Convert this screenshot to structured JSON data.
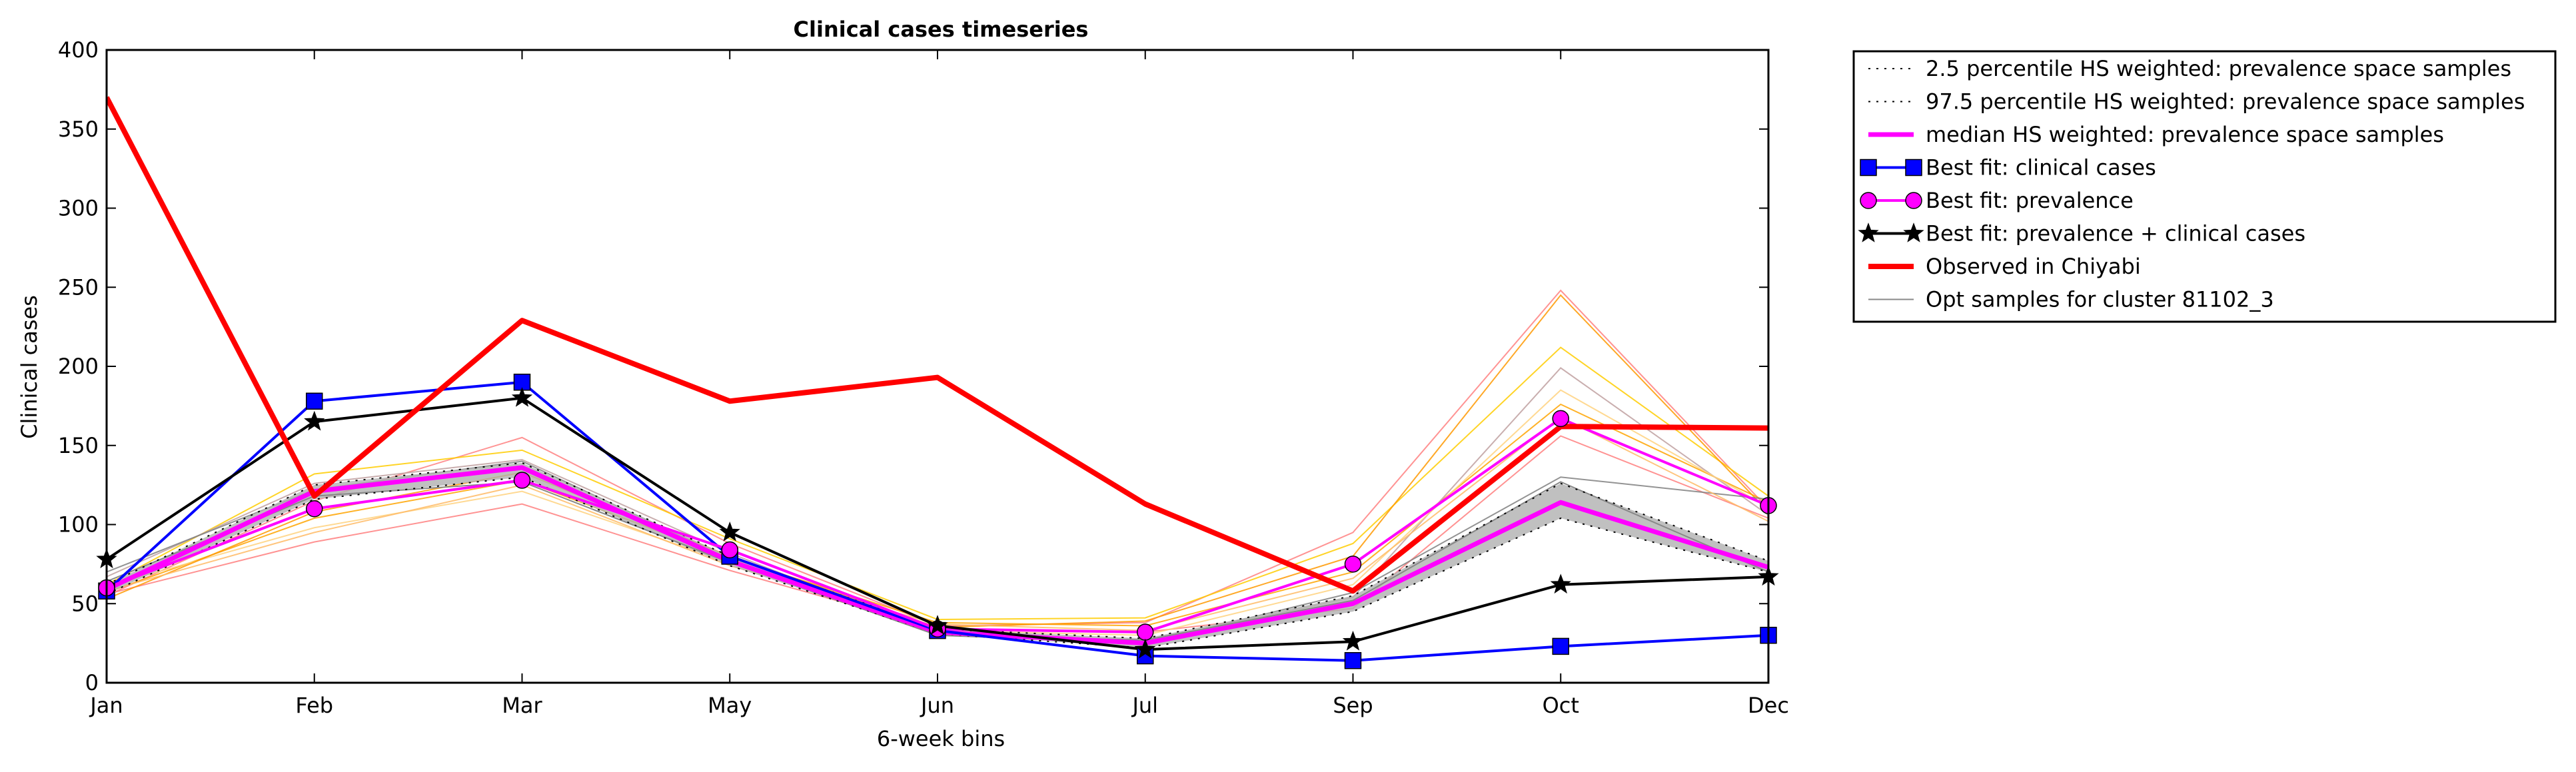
{
  "chart_data": {
    "type": "line",
    "title": "Clinical cases timeseries",
    "xlabel": "6-week bins",
    "ylabel": "Clinical cases",
    "categories": [
      "Jan",
      "Feb",
      "Mar",
      "May",
      "Jun",
      "Jul",
      "Sep",
      "Oct",
      "Dec"
    ],
    "ylim": [
      0,
      400
    ],
    "yticks": [
      0,
      50,
      100,
      150,
      200,
      250,
      300,
      350,
      400
    ],
    "grid": false,
    "legend_placement": "outside top-right",
    "band": {
      "lower": [
        56,
        116,
        130,
        74,
        31,
        22,
        45,
        104,
        70
      ],
      "upper": [
        62,
        125,
        139,
        80,
        34,
        28,
        55,
        126,
        77
      ],
      "color": "#b0b0b0"
    },
    "series": [
      {
        "name": "2.5 percentile HS weighted: prevalence space samples",
        "style": "dotted",
        "color": "#000000",
        "values": [
          56,
          116,
          130,
          74,
          31,
          22,
          45,
          104,
          70
        ]
      },
      {
        "name": "97.5 percentile HS weighted: prevalence space samples",
        "style": "dotted",
        "color": "#000000",
        "values": [
          62,
          125,
          139,
          80,
          34,
          28,
          55,
          126,
          77
        ]
      },
      {
        "name": "median HS weighted: prevalence space samples",
        "style": "thick",
        "color": "#ff00ff",
        "values": [
          59,
          121,
          136,
          77,
          32,
          25,
          50,
          114,
          73
        ]
      },
      {
        "name": "Best fit: clinical cases",
        "style": "square",
        "color": "#0000ff",
        "values": [
          58,
          178,
          190,
          80,
          33,
          17,
          14,
          23,
          30
        ]
      },
      {
        "name": "Best fit: prevalence",
        "style": "circle",
        "color": "#ff00ff",
        "values": [
          60,
          110,
          128,
          84,
          34,
          32,
          75,
          167,
          112
        ]
      },
      {
        "name": "Best fit: prevalence + clinical cases",
        "style": "star",
        "color": "#000000",
        "values": [
          78,
          165,
          180,
          95,
          36,
          21,
          26,
          62,
          67
        ]
      },
      {
        "name": "Observed in Chiyabi",
        "style": "observed",
        "color": "#ff0000",
        "values": [
          370,
          118,
          229,
          178,
          193,
          113,
          58,
          162,
          161
        ]
      },
      {
        "name": "Opt samples for cluster 81102_3",
        "style": "thin",
        "color": "#888888",
        "values": [
          64,
          118,
          127,
          76,
          30,
          27,
          52,
          127,
          70
        ]
      }
    ],
    "samples": [
      {
        "color": "#ff8080",
        "values": [
          55,
          115,
          155,
          88,
          36,
          38,
          95,
          248,
          110
        ]
      },
      {
        "color": "#ffcc00",
        "values": [
          62,
          132,
          147,
          91,
          40,
          41,
          88,
          212,
          118
        ]
      },
      {
        "color": "#ffa500",
        "values": [
          57,
          104,
          128,
          79,
          38,
          36,
          70,
          176,
          114
        ]
      },
      {
        "color": "#ff7f7f",
        "values": [
          56,
          89,
          113,
          71,
          34,
          32,
          47,
          156,
          104
        ]
      },
      {
        "color": "#c0a0a0",
        "values": [
          67,
          126,
          141,
          82,
          30,
          26,
          54,
          199,
          106
        ]
      },
      {
        "color": "#ffd27f",
        "values": [
          61,
          98,
          121,
          76,
          33,
          30,
          62,
          185,
          111
        ]
      },
      {
        "color": "#ff9900",
        "values": [
          53,
          108,
          133,
          80,
          35,
          39,
          80,
          245,
          108
        ]
      },
      {
        "color": "#808080",
        "values": [
          70,
          122,
          140,
          78,
          30,
          25,
          57,
          130,
          116
        ]
      },
      {
        "color": "#ffbb66",
        "values": [
          58,
          95,
          125,
          74,
          37,
          33,
          66,
          168,
          102
        ]
      }
    ]
  }
}
